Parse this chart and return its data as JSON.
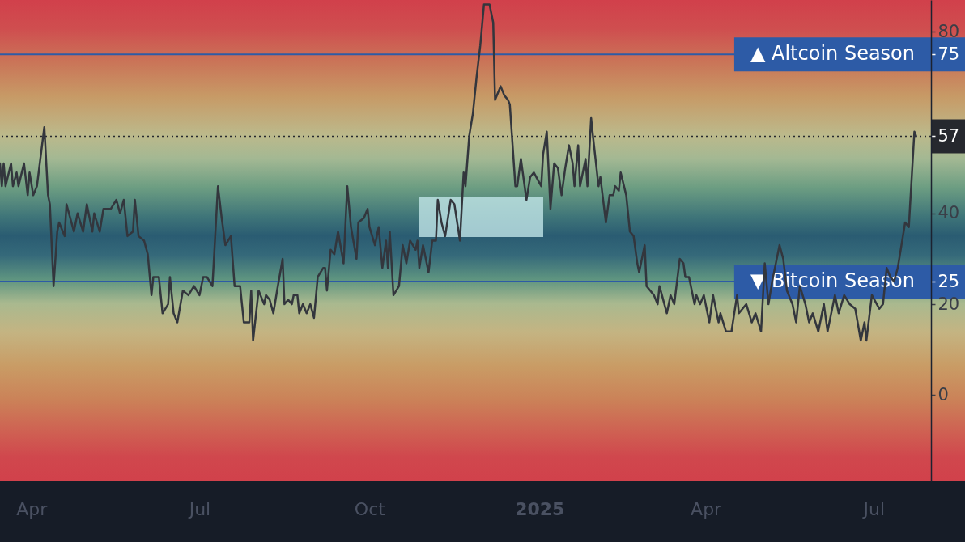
{
  "chart_data": {
    "type": "line",
    "x": [
      "2024-03-15",
      "2024-03-16",
      "2024-03-17",
      "2024-03-18",
      "2024-03-21",
      "2024-03-22",
      "2024-03-24",
      "2024-03-25",
      "2024-03-28",
      "2024-03-30",
      "2024-03-31",
      "2024-04-02",
      "2024-04-04",
      "2024-04-08",
      "2024-04-10",
      "2024-04-11",
      "2024-04-13",
      "2024-04-15",
      "2024-04-16",
      "2024-04-19",
      "2024-04-20",
      "2024-04-22",
      "2024-04-24",
      "2024-04-26",
      "2024-04-29",
      "2024-05-01",
      "2024-05-04",
      "2024-05-05",
      "2024-05-08",
      "2024-05-10",
      "2024-05-14",
      "2024-05-17",
      "2024-05-19",
      "2024-05-21",
      "2024-05-23",
      "2024-05-26",
      "2024-05-27",
      "2024-05-29",
      "2024-06-01",
      "2024-06-03",
      "2024-06-05",
      "2024-06-06",
      "2024-06-09",
      "2024-06-11",
      "2024-06-14",
      "2024-06-15",
      "2024-06-17",
      "2024-06-19",
      "2024-06-22",
      "2024-06-25",
      "2024-06-28",
      "2024-07-01",
      "2024-07-03",
      "2024-07-05",
      "2024-07-08",
      "2024-07-11",
      "2024-07-13",
      "2024-07-15",
      "2024-07-18",
      "2024-07-20",
      "2024-07-23",
      "2024-07-25",
      "2024-07-28",
      "2024-07-29",
      "2024-07-30",
      "2024-08-02",
      "2024-08-05",
      "2024-08-06",
      "2024-08-08",
      "2024-08-10",
      "2024-08-12",
      "2024-08-15",
      "2024-08-16",
      "2024-08-18",
      "2024-08-20",
      "2024-08-21",
      "2024-08-23",
      "2024-08-24",
      "2024-08-26",
      "2024-08-28",
      "2024-08-30",
      "2024-09-01",
      "2024-09-03",
      "2024-09-06",
      "2024-09-07",
      "2024-09-08",
      "2024-09-10",
      "2024-09-12",
      "2024-09-14",
      "2024-09-17",
      "2024-09-19",
      "2024-09-21",
      "2024-09-24",
      "2024-09-25",
      "2024-09-28",
      "2024-09-30",
      "2024-10-01",
      "2024-10-04",
      "2024-10-06",
      "2024-10-08",
      "2024-10-10",
      "2024-10-11",
      "2024-10-12",
      "2024-10-14",
      "2024-10-17",
      "2024-10-19",
      "2024-10-21",
      "2024-10-23",
      "2024-10-26",
      "2024-10-27",
      "2024-10-28",
      "2024-10-30",
      "2024-11-02",
      "2024-11-04",
      "2024-11-06",
      "2024-11-07",
      "2024-11-09",
      "2024-11-11",
      "2024-11-14",
      "2024-11-16",
      "2024-11-19",
      "2024-11-21",
      "2024-11-22",
      "2024-11-24",
      "2024-11-26",
      "2024-11-28",
      "2024-11-30",
      "2024-12-02",
      "2024-12-05",
      "2024-12-07",
      "2024-12-08",
      "2024-12-11",
      "2024-12-13",
      "2024-12-15",
      "2024-12-16",
      "2024-12-19",
      "2024-12-20",
      "2024-12-22",
      "2024-12-23",
      "2024-12-25",
      "2024-12-27",
      "2024-12-29",
      "2025-01-02",
      "2025-01-03",
      "2025-01-05",
      "2025-01-07",
      "2025-01-09",
      "2025-01-11",
      "2025-01-13",
      "2025-01-15",
      "2025-01-17",
      "2025-01-19",
      "2025-01-20",
      "2025-01-22",
      "2025-01-23",
      "2025-01-26",
      "2025-01-27",
      "2025-01-29",
      "2025-01-30",
      "2025-02-02",
      "2025-02-03",
      "2025-02-06",
      "2025-02-08",
      "2025-02-10",
      "2025-02-11",
      "2025-02-13",
      "2025-02-14",
      "2025-02-17",
      "2025-02-19",
      "2025-02-21",
      "2025-02-23",
      "2025-02-24",
      "2025-02-27",
      "2025-02-28",
      "2025-03-02",
      "2025-03-04",
      "2025-03-06",
      "2025-03-07",
      "2025-03-11",
      "2025-03-13",
      "2025-03-15",
      "2025-03-18",
      "2025-03-20",
      "2025-03-21",
      "2025-03-23",
      "2025-03-26",
      "2025-03-27",
      "2025-03-29",
      "2025-03-31",
      "2025-04-03",
      "2025-04-05",
      "2025-04-08",
      "2025-04-09",
      "2025-04-12",
      "2025-04-15",
      "2025-04-18",
      "2025-04-19",
      "2025-04-23",
      "2025-04-26",
      "2025-04-28",
      "2025-05-01",
      "2025-05-03",
      "2025-05-05",
      "2025-05-07",
      "2025-05-11",
      "2025-05-13",
      "2025-05-15",
      "2025-05-18",
      "2025-05-20",
      "2025-05-22",
      "2025-05-25",
      "2025-05-27",
      "2025-05-29",
      "2025-06-01",
      "2025-06-04",
      "2025-06-06",
      "2025-06-10",
      "2025-06-12",
      "2025-06-15",
      "2025-06-18",
      "2025-06-21",
      "2025-06-24",
      "2025-06-26",
      "2025-06-27",
      "2025-06-30",
      "2025-07-04",
      "2025-07-06",
      "2025-07-08",
      "2025-07-10",
      "2025-07-12",
      "2025-07-14",
      "2025-07-16",
      "2025-07-18",
      "2025-07-20",
      "2025-07-21",
      "2025-07-23",
      "2025-07-24"
    ],
    "series": [
      {
        "color": "#33363d",
        "values": [
          51,
          46,
          51,
          46,
          51,
          46,
          49,
          46,
          51,
          44,
          49,
          44,
          46,
          59,
          44,
          42,
          24,
          36,
          38,
          35,
          42,
          39,
          36,
          40,
          36,
          42,
          36,
          40,
          36,
          41,
          41,
          43,
          40,
          43,
          35,
          36,
          43,
          35,
          34,
          31,
          22,
          26,
          26,
          18,
          20,
          26,
          18,
          16,
          23,
          22,
          24,
          22,
          26,
          26,
          24,
          46,
          39,
          33,
          35,
          24,
          24,
          16,
          16,
          23,
          12,
          23,
          20,
          22,
          21,
          18,
          23,
          30,
          20,
          21,
          20,
          22,
          22,
          18,
          20,
          18,
          20,
          17,
          26,
          28,
          28,
          23,
          32,
          31,
          36,
          29,
          46,
          37,
          30,
          38,
          39,
          41,
          37,
          33,
          37,
          28,
          34,
          28,
          36,
          22,
          24,
          33,
          29,
          34,
          32,
          34,
          28,
          33,
          27,
          34,
          34,
          43,
          38,
          35,
          43,
          42,
          34,
          49,
          46,
          57,
          62,
          70,
          77,
          86,
          86,
          82,
          65,
          68,
          66,
          65,
          64,
          46,
          46,
          52,
          49,
          43,
          48,
          49,
          46,
          53,
          58,
          41,
          51,
          50,
          44,
          50,
          55,
          51,
          46,
          55,
          46,
          52,
          46,
          61,
          57,
          46,
          48,
          38,
          44,
          44,
          46,
          45,
          49,
          44,
          36,
          35,
          29,
          27,
          33,
          24,
          23,
          22,
          20,
          24,
          18,
          22,
          20,
          30,
          29,
          26,
          26,
          20,
          22,
          20,
          22,
          16,
          22,
          16,
          18,
          14,
          14,
          22,
          18,
          20,
          16,
          18,
          14,
          29,
          20,
          25,
          33,
          30,
          23,
          20,
          16,
          24,
          20,
          16,
          18,
          14,
          20,
          14,
          22,
          18,
          22,
          20,
          19,
          12,
          16,
          12,
          22,
          19,
          20,
          28,
          26,
          25,
          28,
          33,
          38,
          37,
          44,
          58,
          57
        ]
      }
    ],
    "xlim": [
      "2024-03-15",
      "2025-08-01"
    ],
    "ylim": [
      -19,
      87
    ],
    "xticks": [
      {
        "value": "2024-04-01",
        "label": "Apr"
      },
      {
        "value": "2024-07-01",
        "label": "Jul"
      },
      {
        "value": "2024-10-01",
        "label": "Oct"
      },
      {
        "value": "2025-01-01",
        "label": "2025"
      },
      {
        "value": "2025-04-01",
        "label": "Apr"
      },
      {
        "value": "2025-07-01",
        "label": "Jul"
      }
    ],
    "yticks": [
      0,
      20,
      25,
      40,
      57,
      75,
      80
    ],
    "ref_lines": [
      {
        "axis": "y",
        "value": 75,
        "label": "▲ Altcoin Season",
        "color": "#2d5ba6"
      },
      {
        "axis": "y",
        "value": 25,
        "label": "▼ Bitcoin Season",
        "color": "#2d5ba6"
      },
      {
        "axis": "y",
        "value": 57,
        "color": "#26282e",
        "line_style": "dotted"
      }
    ]
  }
}
